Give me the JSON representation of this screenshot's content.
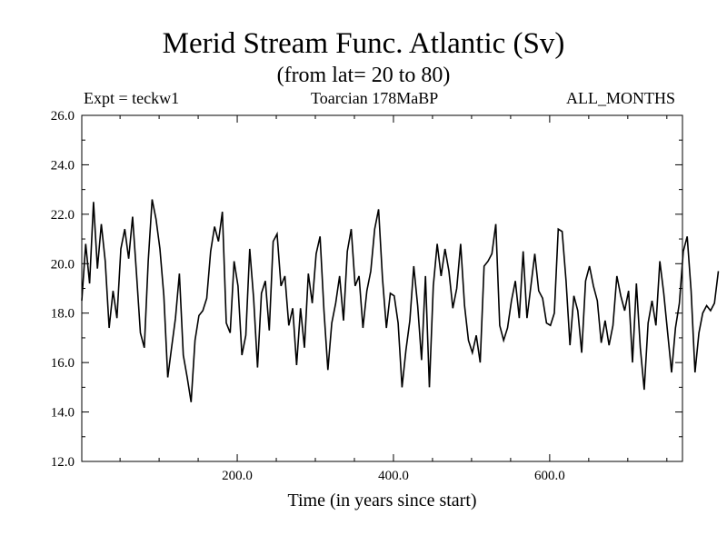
{
  "chart_data": {
    "type": "line",
    "title": "Merid Stream Func. Atlantic (Sv)",
    "subtitle": "(from lat= 20 to 80)",
    "annotations": {
      "left": "Expt = teckw1",
      "center": "Toarcian 178MaBP",
      "right": "ALL_MONTHS"
    },
    "xlabel": "Time (in years since start)",
    "ylabel": "",
    "xlim": [
      1,
      770
    ],
    "ylim": [
      12.0,
      26.0
    ],
    "x_ticks": [
      200.0,
      400.0,
      600.0
    ],
    "x_tick_labels": [
      "200.0",
      "400.0",
      "600.0"
    ],
    "y_ticks": [
      12.0,
      14.0,
      16.0,
      18.0,
      20.0,
      22.0,
      24.0,
      26.0
    ],
    "y_tick_labels": [
      "12.0",
      "14.0",
      "16.0",
      "18.0",
      "20.0",
      "22.0",
      "24.0",
      "26.0"
    ],
    "grid": false,
    "series": [
      {
        "name": "Merid Stream Func. Atlantic",
        "x_start": 1,
        "x_step": 5,
        "values": [
          18.5,
          20.8,
          19.2,
          22.5,
          19.8,
          21.6,
          20.1,
          17.4,
          18.9,
          17.8,
          20.6,
          21.4,
          20.2,
          21.9,
          19.6,
          17.2,
          16.6,
          20.1,
          22.6,
          21.8,
          20.6,
          18.7,
          15.4,
          16.6,
          17.8,
          19.6,
          16.3,
          15.4,
          14.4,
          16.9,
          17.9,
          18.1,
          18.6,
          20.5,
          21.5,
          20.9,
          22.1,
          17.6,
          17.2,
          20.1,
          19.1,
          16.3,
          17.1,
          20.6,
          18.6,
          15.8,
          18.8,
          19.3,
          17.3,
          20.9,
          21.2,
          19.1,
          19.5,
          17.5,
          18.2,
          15.9,
          18.2,
          16.6,
          19.6,
          18.4,
          20.4,
          21.1,
          18.1,
          15.7,
          17.6,
          18.4,
          19.5,
          17.7,
          20.5,
          21.4,
          19.1,
          19.5,
          17.4,
          18.9,
          19.7,
          21.4,
          22.2,
          19.4,
          17.4,
          18.8,
          18.7,
          17.6,
          15.0,
          16.5,
          17.7,
          19.9,
          18.3,
          16.1,
          19.5,
          15.0,
          19.1,
          20.8,
          19.5,
          20.6,
          19.7,
          18.2,
          19.0,
          20.8,
          18.3,
          16.9,
          16.4,
          17.1,
          16.0,
          19.9,
          20.1,
          20.4,
          21.6,
          17.5,
          16.9,
          17.4,
          18.5,
          19.3,
          17.8,
          20.5,
          17.8,
          19.1,
          20.4,
          18.9,
          18.6,
          17.6,
          17.5,
          18.0,
          21.4,
          21.3,
          19.3,
          16.7,
          18.7,
          18.1,
          16.4,
          19.3,
          19.9,
          19.1,
          18.5,
          16.8,
          17.7,
          16.7,
          17.5,
          19.5,
          18.7,
          18.1,
          18.9,
          16.0,
          19.2,
          16.6,
          14.9,
          17.6,
          18.5,
          17.5,
          20.1,
          18.8,
          17.2,
          15.6,
          17.4,
          18.4,
          20.5,
          21.1,
          18.9,
          15.6,
          17.2,
          18.0,
          18.3,
          18.1,
          18.4,
          19.7
        ]
      }
    ]
  }
}
